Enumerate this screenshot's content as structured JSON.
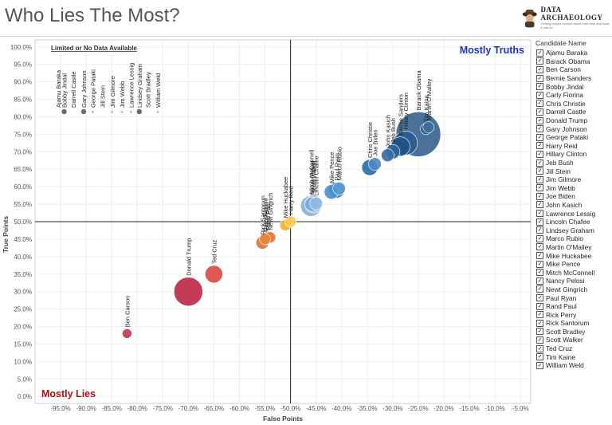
{
  "title": "Who Lies The Most?",
  "logo": {
    "name": "DATA ARCHAEOLOGY",
    "tagline": "Getting people excited about their data and what it can do"
  },
  "legend": {
    "title": "Candidate Name",
    "check_glyph": "✓",
    "items": [
      "Ajamu Baraka",
      "Barack Obama",
      "Ben Carson",
      "Bernie Sanders",
      "Bobby Jindal",
      "Carly Fiorina",
      "Chris Christie",
      "Darrell Castle",
      "Donald Trump",
      "Gary Johnson",
      "George Pataki",
      "Harry Reid",
      "Hillary Clinton",
      "Jeb Bush",
      "Jill Stein",
      "Jim Gilmore",
      "Jim Webb",
      "Joe Biden",
      "John Kasich",
      "Lawrence Lessig",
      "Lincoln Chafee",
      "Lindsey Graham",
      "Marco Rubio",
      "Martin O'Malley",
      "Mike Huckabee",
      "Mike Pence",
      "Mitch McConnell",
      "Nancy Pelosi",
      "Newt Gingrich",
      "Paul Ryan",
      "Rand Paul",
      "Rick Perry",
      "Rick Santorum",
      "Scott Bradley",
      "Scott Walker",
      "Ted Cruz",
      "Tim Kaine",
      "William Weld"
    ]
  },
  "chart_data": {
    "type": "scatter",
    "xlabel": "False Points",
    "ylabel": "True Points",
    "xlim": [
      -1.0,
      -0.03
    ],
    "ylim": [
      -0.02,
      1.02
    ],
    "xticks": [
      -0.95,
      -0.9,
      -0.85,
      -0.8,
      -0.75,
      -0.7,
      -0.65,
      -0.6,
      -0.55,
      -0.5,
      -0.45,
      -0.4,
      -0.35,
      -0.3,
      -0.25,
      -0.2,
      -0.15,
      -0.1,
      -0.05
    ],
    "xtick_labels": [
      "-95.0%",
      "-90.0%",
      "-85.0%",
      "-80.0%",
      "-75.0%",
      "-70.0%",
      "-65.0%",
      "-60.0%",
      "-55.0%",
      "-50.0%",
      "-45.0%",
      "-40.0%",
      "-35.0%",
      "-30.0%",
      "-25.0%",
      "-20.0%",
      "-15.0%",
      "-10.0%",
      "-5.0%"
    ],
    "yticks": [
      0,
      0.05,
      0.1,
      0.15,
      0.2,
      0.25,
      0.3,
      0.35,
      0.4,
      0.45,
      0.5,
      0.55,
      0.6,
      0.65,
      0.7,
      0.75,
      0.8,
      0.85,
      0.9,
      0.95,
      1.0
    ],
    "ytick_labels": [
      "0.0%",
      "5.0%",
      "10.0%",
      "15.0%",
      "20.0%",
      "25.0%",
      "30.0%",
      "35.0%",
      "40.0%",
      "45.0%",
      "50.0%",
      "55.0%",
      "60.0%",
      "65.0%",
      "70.0%",
      "75.0%",
      "80.0%",
      "85.0%",
      "90.0%",
      "95.0%",
      "100.0%"
    ],
    "reference_lines": {
      "x": -0.5,
      "y": 0.5
    },
    "annotations": {
      "top_right": "Mostly Truths",
      "bottom_left": "Mostly Lies",
      "top_left_header": "Limited or No Data Available"
    },
    "limited_data": [
      {
        "name": "Ajamu Baraka",
        "x": -0.955,
        "marker": "none"
      },
      {
        "name": "Bobby Jindal",
        "x": -0.943,
        "marker": "dot"
      },
      {
        "name": "Darrell Castle",
        "x": -0.925,
        "marker": "none"
      },
      {
        "name": "Gary Johnson",
        "x": -0.905,
        "marker": "dot"
      },
      {
        "name": "George Pataki",
        "x": -0.887,
        "marker": "plus"
      },
      {
        "name": "Jill Stein",
        "x": -0.868,
        "marker": "none"
      },
      {
        "name": "Jim Gilmore",
        "x": -0.849,
        "marker": "plus"
      },
      {
        "name": "Jim Webb",
        "x": -0.83,
        "marker": "plus"
      },
      {
        "name": "Lawrence Lessig",
        "x": -0.812,
        "marker": "plus"
      },
      {
        "name": "Lindsey Graham",
        "x": -0.796,
        "marker": "dot"
      },
      {
        "name": "Scott Bradley",
        "x": -0.779,
        "marker": "none"
      },
      {
        "name": "William Weld",
        "x": -0.76,
        "marker": "plus"
      }
    ],
    "points": [
      {
        "name": "Ben Carson",
        "x": -0.82,
        "y": 0.18,
        "size": 6,
        "color": "#c23b52"
      },
      {
        "name": "Donald Trump",
        "x": -0.7,
        "y": 0.3,
        "size": 18,
        "color": "#bf2a48"
      },
      {
        "name": "Ted Cruz",
        "x": -0.65,
        "y": 0.35,
        "size": 11,
        "color": "#dd4a45"
      },
      {
        "name": "Rick Santorum",
        "x": -0.555,
        "y": 0.44,
        "size": 8,
        "color": "#e8702f"
      },
      {
        "name": "Rand Paul",
        "x": -0.545,
        "y": 0.455,
        "size": 7,
        "color": "#e07a38"
      },
      {
        "name": "Rick Perry",
        "x": -0.548,
        "y": 0.45,
        "size": 7,
        "color": "#e86f2c"
      },
      {
        "name": "Newt Gingrich",
        "x": -0.54,
        "y": 0.455,
        "size": 7,
        "color": "#e77732"
      },
      {
        "name": "Carly Fiorina",
        "x": -0.55,
        "y": 0.45,
        "size": 7,
        "color": "#e98538"
      },
      {
        "name": "Mike Huckabee",
        "x": -0.51,
        "y": 0.49,
        "size": 7,
        "color": "#f3b32e"
      },
      {
        "name": "Harry Reid",
        "x": -0.5,
        "y": 0.5,
        "size": 7,
        "color": "#f7cb54"
      },
      {
        "name": "Mitch McConnell",
        "x": -0.46,
        "y": 0.545,
        "size": 13,
        "color": "#86b3de"
      },
      {
        "name": "Scott Walker",
        "x": -0.455,
        "y": 0.55,
        "size": 11,
        "color": "#9cc3e6"
      },
      {
        "name": "Nancy Pelosi",
        "x": -0.458,
        "y": 0.55,
        "size": 9,
        "color": "#79addb"
      },
      {
        "name": "Lincoln Chafee",
        "x": -0.45,
        "y": 0.552,
        "size": 8,
        "color": "#8fbbe2"
      },
      {
        "name": "Mike Pence",
        "x": -0.42,
        "y": 0.585,
        "size": 9,
        "color": "#4a90cf"
      },
      {
        "name": "Paul Ryan",
        "x": -0.41,
        "y": 0.59,
        "size": 10,
        "color": "#3c86c8"
      },
      {
        "name": "Marco Rubio",
        "x": -0.405,
        "y": 0.595,
        "size": 8,
        "color": "#5a9ad3"
      },
      {
        "name": "Chris Christie",
        "x": -0.345,
        "y": 0.655,
        "size": 10,
        "color": "#2c6ea8"
      },
      {
        "name": "Joe Biden",
        "x": -0.335,
        "y": 0.665,
        "size": 8,
        "color": "#4d8bc5"
      },
      {
        "name": "John Kasich",
        "x": -0.31,
        "y": 0.69,
        "size": 8,
        "color": "#356fa5"
      },
      {
        "name": "Jeb Bush",
        "x": -0.3,
        "y": 0.7,
        "size": 9,
        "color": "#2d649a"
      },
      {
        "name": "Bernie Sanders",
        "x": -0.285,
        "y": 0.715,
        "size": 12,
        "color": "#1f5287"
      },
      {
        "name": "Hillary Clinton",
        "x": -0.275,
        "y": 0.725,
        "size": 15,
        "color": "#2a5c8f"
      },
      {
        "name": "Barack Obama",
        "x": -0.25,
        "y": 0.75,
        "size": 28,
        "color": "#3a6590"
      },
      {
        "name": "Tim Kaine",
        "x": -0.235,
        "y": 0.765,
        "size": 7,
        "color": "#2b5e92"
      },
      {
        "name": "Martin O'Malley",
        "x": -0.23,
        "y": 0.77,
        "size": 7,
        "color": "#3d6c9b"
      }
    ]
  }
}
